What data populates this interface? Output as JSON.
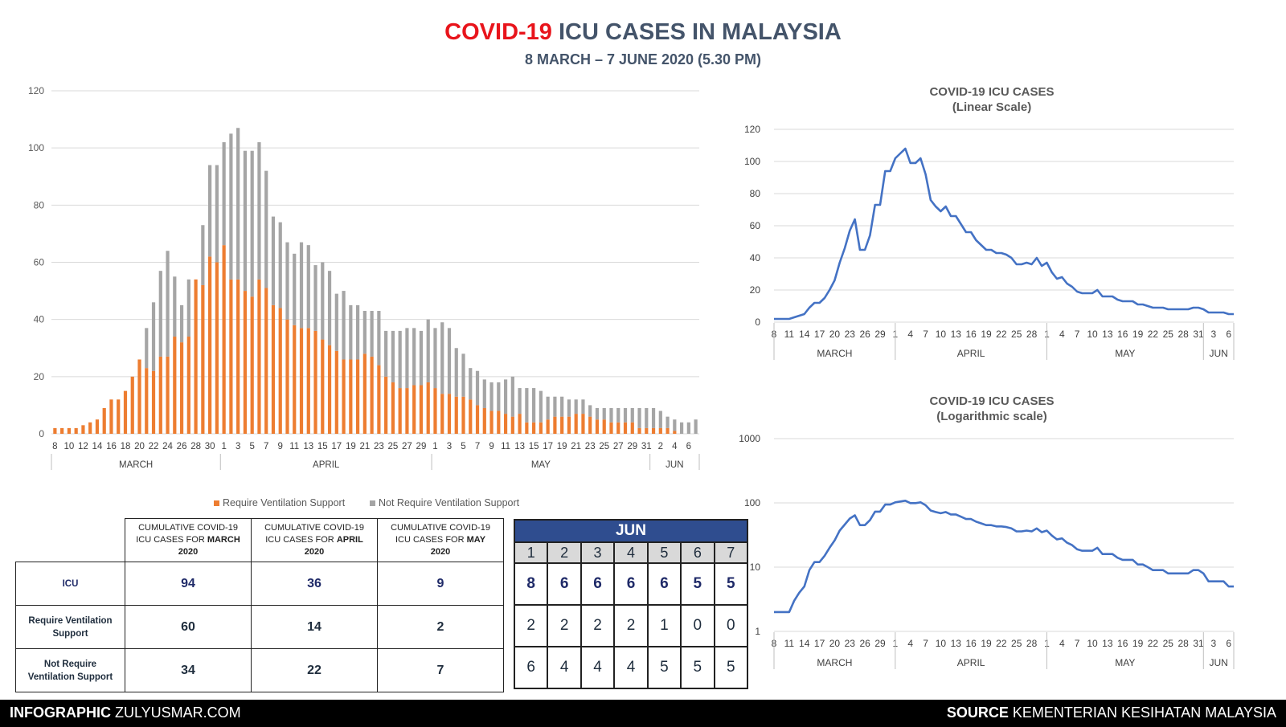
{
  "header": {
    "title_red": "COVID-19",
    "title_rest": "ICU CASES IN MALAYSIA",
    "subtitle": "8 MARCH – 7 JUNE 2020 (5.30 PM)"
  },
  "colors": {
    "orange": "#ed7d31",
    "gray": "#a5a5a5",
    "blue": "#4472c4",
    "navy": "#1f2a68",
    "header_blue": "#2f4d8f",
    "red": "#e8141b"
  },
  "chart_data": [
    {
      "type": "bar",
      "stacked": true,
      "ylim": [
        0,
        120
      ],
      "yticks": [
        0,
        20,
        40,
        60,
        80,
        100,
        120
      ],
      "x_tick_labels": [
        "8",
        "10",
        "12",
        "14",
        "16",
        "18",
        "20",
        "22",
        "24",
        "26",
        "28",
        "30",
        "1",
        "3",
        "5",
        "7",
        "9",
        "11",
        "13",
        "15",
        "17",
        "19",
        "21",
        "23",
        "25",
        "27",
        "29",
        "1",
        "3",
        "5",
        "7",
        "9",
        "11",
        "13",
        "15",
        "17",
        "19",
        "21",
        "23",
        "25",
        "27",
        "29",
        "31",
        "2",
        "4",
        "6"
      ],
      "month_labels": [
        "MARCH",
        "APRIL",
        "MAY",
        "JUN"
      ],
      "series": [
        {
          "name": "Require Ventilation Support",
          "values": [
            2,
            2,
            2,
            2,
            3,
            4,
            5,
            9,
            12,
            12,
            15,
            20,
            26,
            23,
            22,
            27,
            27,
            34,
            32,
            34,
            54,
            52,
            62,
            60,
            66,
            54,
            54,
            50,
            48,
            54,
            51,
            45,
            44,
            40,
            38,
            37,
            37,
            36,
            33,
            31,
            29,
            26,
            26,
            26,
            28,
            27,
            24,
            20,
            18,
            16,
            16,
            17,
            17,
            18,
            16,
            14,
            14,
            13,
            13,
            12,
            10,
            9,
            8,
            8,
            7,
            6,
            7,
            4,
            4,
            4,
            5,
            6,
            6,
            6,
            7,
            7,
            6,
            5,
            5,
            4,
            4,
            4,
            4,
            2,
            2,
            2,
            2,
            2,
            1,
            0,
            0,
            0
          ]
        },
        {
          "name": "Not Require Ventilation Support",
          "values": [
            0,
            0,
            0,
            0,
            0,
            0,
            0,
            0,
            0,
            0,
            0,
            0,
            0,
            14,
            24,
            30,
            37,
            21,
            13,
            20,
            0,
            21,
            32,
            34,
            36,
            51,
            53,
            49,
            51,
            48,
            41,
            31,
            30,
            27,
            25,
            30,
            29,
            23,
            27,
            26,
            20,
            24,
            19,
            19,
            15,
            16,
            19,
            16,
            18,
            20,
            21,
            20,
            19,
            22,
            21,
            25,
            23,
            17,
            15,
            11,
            12,
            10,
            10,
            10,
            12,
            14,
            9,
            12,
            12,
            11,
            8,
            7,
            7,
            6,
            5,
            5,
            4,
            4,
            4,
            5,
            5,
            5,
            5,
            7,
            7,
            7,
            6,
            4,
            4,
            4,
            4,
            5
          ]
        }
      ],
      "legend": [
        "Require Ventilation Support",
        "Not Require Ventilation Support"
      ]
    },
    {
      "type": "line",
      "title": "COVID-19 ICU CASES",
      "subtitle": "(Linear Scale)",
      "ylim": [
        0,
        120
      ],
      "yticks": [
        0,
        20,
        40,
        60,
        80,
        100,
        120
      ],
      "x_tick_labels": [
        "8",
        "11",
        "14",
        "17",
        "20",
        "23",
        "26",
        "29",
        "1",
        "4",
        "7",
        "10",
        "13",
        "16",
        "19",
        "22",
        "25",
        "28",
        "1",
        "4",
        "7",
        "10",
        "13",
        "16",
        "19",
        "22",
        "25",
        "28",
        "31",
        "3",
        "6"
      ],
      "month_labels": [
        "MARCH",
        "APRIL",
        "MAY",
        "JUN"
      ],
      "values": [
        2,
        2,
        2,
        2,
        3,
        4,
        5,
        9,
        12,
        12,
        15,
        20,
        26,
        37,
        46,
        57,
        64,
        45,
        45,
        54,
        73,
        73,
        94,
        94,
        102,
        105,
        108,
        99,
        99,
        102,
        92,
        76,
        72,
        69,
        72,
        66,
        66,
        61,
        56,
        56,
        51,
        48,
        45,
        45,
        43,
        43,
        42,
        40,
        36,
        36,
        37,
        36,
        40,
        35,
        37,
        31,
        27,
        28,
        24,
        22,
        19,
        18,
        18,
        18,
        20,
        16,
        16,
        16,
        14,
        13,
        13,
        13,
        11,
        11,
        10,
        9,
        9,
        9,
        8,
        8,
        8,
        8,
        8,
        9,
        9,
        8,
        6,
        6,
        6,
        6,
        5,
        5
      ]
    },
    {
      "type": "line",
      "scale": "log",
      "title": "COVID-19 ICU CASES",
      "subtitle": "(Logarithmic scale)",
      "ylim": [
        1,
        1000
      ],
      "yticks": [
        1,
        10,
        100,
        1000
      ],
      "x_tick_labels": [
        "8",
        "11",
        "14",
        "17",
        "20",
        "23",
        "26",
        "29",
        "1",
        "4",
        "7",
        "10",
        "13",
        "16",
        "19",
        "22",
        "25",
        "28",
        "1",
        "4",
        "7",
        "10",
        "13",
        "16",
        "19",
        "22",
        "25",
        "28",
        "31",
        "3",
        "6"
      ],
      "month_labels": [
        "MARCH",
        "APRIL",
        "MAY",
        "JUN"
      ],
      "values": [
        2,
        2,
        2,
        2,
        3,
        4,
        5,
        9,
        12,
        12,
        15,
        20,
        26,
        37,
        46,
        57,
        64,
        45,
        45,
        54,
        73,
        73,
        94,
        94,
        102,
        105,
        108,
        99,
        99,
        102,
        92,
        76,
        72,
        69,
        72,
        66,
        66,
        61,
        56,
        56,
        51,
        48,
        45,
        45,
        43,
        43,
        42,
        40,
        36,
        36,
        37,
        36,
        40,
        35,
        37,
        31,
        27,
        28,
        24,
        22,
        19,
        18,
        18,
        18,
        20,
        16,
        16,
        16,
        14,
        13,
        13,
        13,
        11,
        11,
        10,
        9,
        9,
        9,
        8,
        8,
        8,
        8,
        8,
        9,
        9,
        8,
        6,
        6,
        6,
        6,
        5,
        5
      ]
    }
  ],
  "cumulative_table": {
    "headers": [
      {
        "line1": "CUMULATIVE COVID-19",
        "line2a": "ICU CASES FOR ",
        "month": "MARCH",
        "year": "2020"
      },
      {
        "line1": "CUMULATIVE COVID-19",
        "line2a": "ICU CASES FOR ",
        "month": "APRIL",
        "year": "2020"
      },
      {
        "line1": "CUMULATIVE COVID-19",
        "line2a": "ICU CASES FOR ",
        "month": "MAY",
        "year": "2020"
      }
    ],
    "rows": [
      {
        "label1": "ICU",
        "label2": "",
        "values": [
          "94",
          "36",
          "9"
        ]
      },
      {
        "label1": "Require Ventilation",
        "label2": "Support",
        "values": [
          "60",
          "14",
          "2"
        ]
      },
      {
        "label1": "Not Require",
        "label2": "Ventilation Support",
        "values": [
          "34",
          "22",
          "7"
        ]
      }
    ]
  },
  "june_table": {
    "month": "JUN",
    "days": [
      "1",
      "2",
      "3",
      "4",
      "5",
      "6",
      "7"
    ],
    "icu": [
      "8",
      "6",
      "6",
      "6",
      "6",
      "5",
      "5"
    ],
    "require_vent": [
      "2",
      "2",
      "2",
      "2",
      "1",
      "0",
      "0"
    ],
    "not_require_vent": [
      "6",
      "4",
      "4",
      "4",
      "5",
      "5",
      "5"
    ]
  },
  "footer": {
    "left_bold": "INFOGRAPHIC",
    "left_text": " ZULYUSMAR.COM",
    "right_bold": "SOURCE",
    "right_text": " KEMENTERIAN KESIHATAN MALAYSIA"
  }
}
